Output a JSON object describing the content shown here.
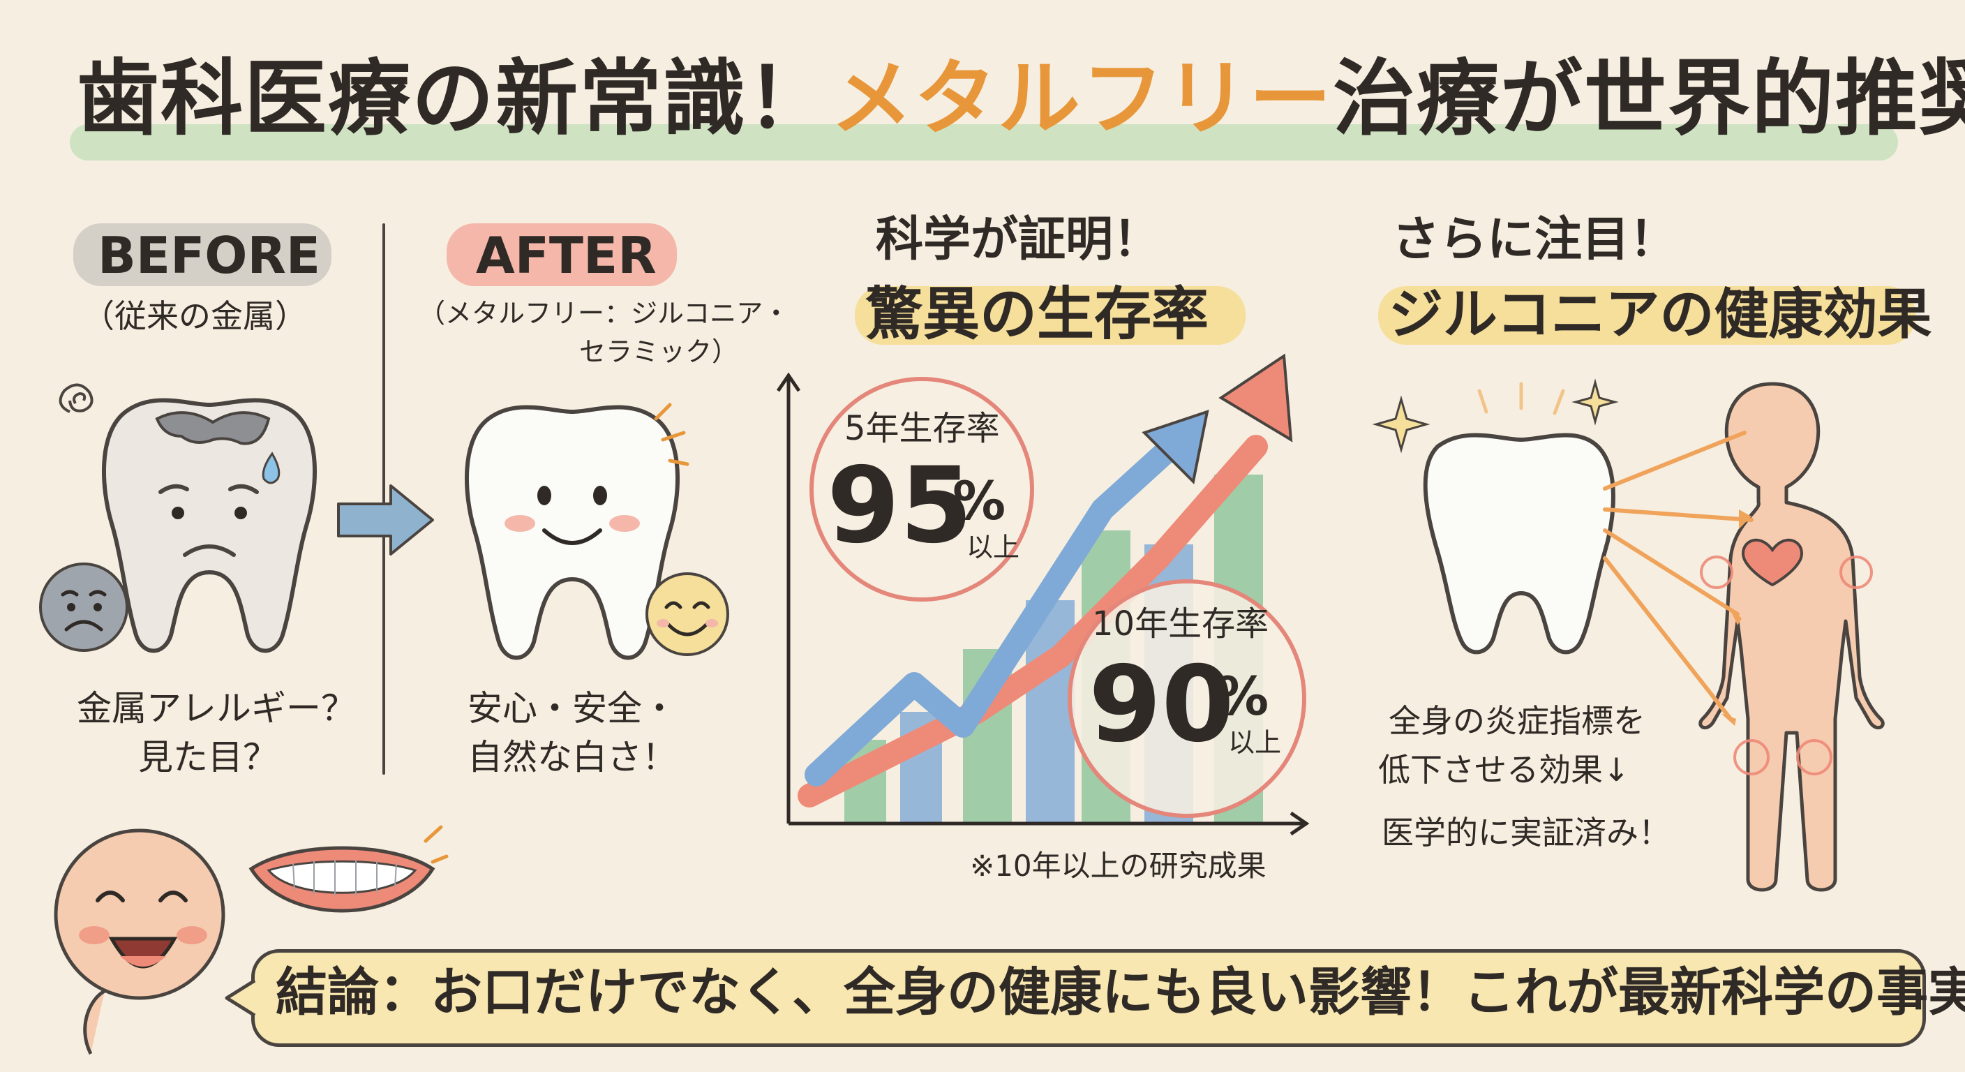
{
  "title": {
    "main": "歯科医療の新常識！",
    "accent": "メタルフリー",
    "tail": "治療が世界的推奨"
  },
  "before": {
    "heading": "BEFORE",
    "sub": "（従来の金属）",
    "caption_1": "金属アレルギー？",
    "caption_2": "見た目？"
  },
  "after": {
    "heading": "AFTER",
    "sub_1": "（メタルフリー：ジルコニア・",
    "sub_2": "セラミック）",
    "caption_1": "安心・安全・",
    "caption_2": "自然な白さ！"
  },
  "science": {
    "heading_1": "科学が証明！",
    "heading_2": "驚異の生存率",
    "stat5_label": "5年生存率",
    "stat5_value": "95",
    "stat5_unit": "%",
    "stat5_suffix": "以上",
    "stat10_label": "10年生存率",
    "stat10_value": "90",
    "stat10_unit": "%",
    "stat10_suffix": "以上",
    "footnote": "※10年以上の研究成果"
  },
  "health": {
    "heading_1": "さらに注目！",
    "heading_2": "ジルコニアの健康効果",
    "caption_1": "全身の炎症指標を",
    "caption_2": "低下させる効果↓",
    "caption_3": "医学的に実証済み！"
  },
  "conclusion": {
    "text": "結論：お口だけでなく、全身の健康にも良い影響！これが最新科学の事実。"
  },
  "colors": {
    "accent_orange": "#e8963a",
    "highlight_green": "#cfe3c3",
    "highlight_yellow": "#f6df9a",
    "highlight_pink": "#f4b7aa",
    "chart_blue": "#7fa9d6",
    "chart_red": "#ee8a78",
    "chart_green": "#8cc39a"
  },
  "icons": [
    "worried-tooth-icon",
    "sad-face-icon",
    "arrow-right-icon",
    "happy-tooth-icon",
    "smile-face-icon",
    "rising-arrow-chart-icon",
    "sparkling-tooth-icon",
    "heart-icon",
    "human-body-icon",
    "smiling-person-icon",
    "smiling-mouth-icon"
  ]
}
